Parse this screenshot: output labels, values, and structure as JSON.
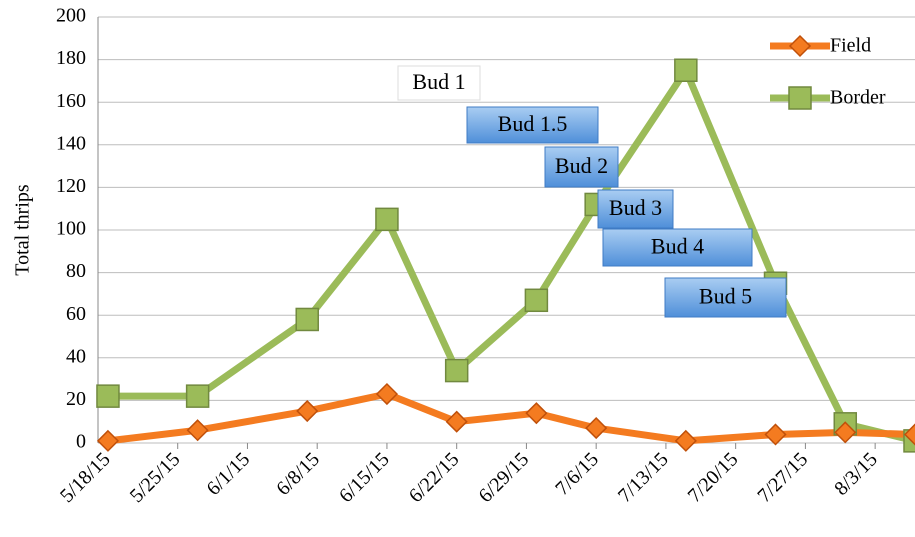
{
  "chart_data": {
    "type": "line",
    "y_label": "Total thrips",
    "x": [
      "2015-05-18",
      "2015-05-27",
      "2015-06-07",
      "2015-06-15",
      "2015-06-22",
      "2015-06-30",
      "2015-07-06",
      "2015-07-15",
      "2015-07-24",
      "2015-07-31",
      "2015-08-07"
    ],
    "series": [
      {
        "name": "Field",
        "color": "#f47b20",
        "marker": "diamond",
        "values": [
          1,
          6,
          15,
          23,
          10,
          14,
          7,
          1,
          4,
          5,
          4
        ]
      },
      {
        "name": "Border",
        "color": "#9bbb59",
        "marker": "square",
        "values": [
          22,
          22,
          58,
          105,
          34,
          67,
          112,
          175,
          75,
          9,
          1
        ]
      }
    ],
    "xlim": [
      "2015-05-17",
      "2015-08-07"
    ],
    "xticks": [
      {
        "value": "2015-05-18",
        "label": "5/18/15"
      },
      {
        "value": "2015-05-25",
        "label": "5/25/15"
      },
      {
        "value": "2015-06-01",
        "label": "6/1/15"
      },
      {
        "value": "2015-06-08",
        "label": "6/8/15"
      },
      {
        "value": "2015-06-15",
        "label": "6/15/15"
      },
      {
        "value": "2015-06-22",
        "label": "6/22/15"
      },
      {
        "value": "2015-06-29",
        "label": "6/29/15"
      },
      {
        "value": "2015-07-06",
        "label": "7/6/15"
      },
      {
        "value": "2015-07-13",
        "label": "7/13/15"
      },
      {
        "value": "2015-07-20",
        "label": "7/20/15"
      },
      {
        "value": "2015-07-27",
        "label": "7/27/15"
      },
      {
        "value": "2015-08-03",
        "label": "8/3/15"
      }
    ],
    "ylim": [
      0,
      200
    ],
    "yticks": [
      0,
      20,
      40,
      60,
      80,
      100,
      120,
      140,
      160,
      180,
      200
    ],
    "grid": true,
    "legend": "upper right",
    "annotations": [
      "Bud 1",
      "Bud 1.5",
      "Bud 2",
      "Bud 3",
      "Bud 4",
      "Bud 5"
    ]
  }
}
